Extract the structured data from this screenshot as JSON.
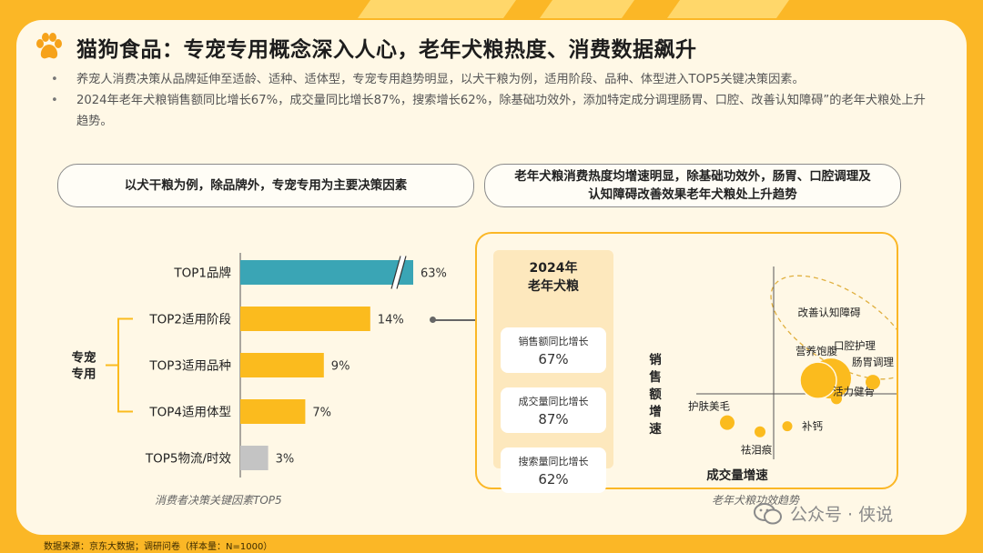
{
  "page": {
    "title": "猫狗食品：专宠专用概念深入人心，老年犬粮热度、消费数据飙升",
    "bullets": [
      "养宠人消费决策从品牌延伸至适龄、适种、适体型，专宠专用趋势明显，以犬干粮为例，适用阶段、品种、体型进入TOP5关键决策因素。",
      "2024年老年犬粮销售额同比增长67%，成交量同比增长87%，搜索增长62%，除基础功效外，添加特定成分调理肠胃、口腔、改善认知障碍”的老年犬粮处上升趋势。"
    ],
    "pill_left": "以犬干粮为例，除品牌外，专宠专用为主要决策因素",
    "pill_right_line1": "老年犬粮消费热度均增速明显，除基础功效外，肠胃、口腔调理及",
    "pill_right_line2": "认知障碍改善效果老年犬粮处上升趋势",
    "source": "数据来源：京东大数据；调研问卷（样本量：N=1000）",
    "watermark": "公众号 · 侠说"
  },
  "stats": {
    "title_line1": "2024年",
    "title_line2": "老年犬粮",
    "items": [
      {
        "label": "销售额同比增长",
        "value": "67%"
      },
      {
        "label": "成交量同比增长",
        "value": "87%"
      },
      {
        "label": "搜索量同比增长",
        "value": "62%"
      }
    ]
  },
  "chart_data": [
    {
      "type": "bar",
      "orientation": "horizontal",
      "caption": "消费者决策关键因素TOP5",
      "categories": [
        "TOP1品牌",
        "TOP2适用阶段",
        "TOP3适用品种",
        "TOP4适用体型",
        "TOP5物流/时效"
      ],
      "values": [
        63,
        14,
        9,
        7,
        3
      ],
      "value_labels": [
        "63%",
        "14%",
        "9%",
        "7%",
        "3%"
      ],
      "colors": [
        "#3aa5b5",
        "#fbbb1e",
        "#fbbb1e",
        "#fbbb1e",
        "#c4c4c4"
      ],
      "axis_break": true,
      "bracket_label": [
        "专宠",
        "专用"
      ],
      "bracket_covers": [
        "TOP2适用阶段",
        "TOP3适用品种",
        "TOP4适用体型"
      ]
    },
    {
      "type": "scatter",
      "caption": "老年犬粮功效趋势",
      "xlabel": "成交量增速",
      "ylabel": "销售额增速",
      "points": [
        {
          "label": "营养饱腹",
          "x": 0.62,
          "y": 0.43,
          "size": 3
        },
        {
          "label": "护肤美毛",
          "x": 0.12,
          "y": 0.2,
          "size": 1
        },
        {
          "label": "祛泪痕",
          "x": 0.3,
          "y": 0.15,
          "size": 0.6
        },
        {
          "label": "补钙",
          "x": 0.45,
          "y": 0.18,
          "size": 0.5
        },
        {
          "label": "活力健骨",
          "x": 0.72,
          "y": 0.33,
          "size": 0.6
        },
        {
          "label": "肠胃调理",
          "x": 0.92,
          "y": 0.42,
          "size": 1
        },
        {
          "label": "口腔护理",
          "x": 0.82,
          "y": 0.62,
          "size": 0
        },
        {
          "label": "改善认知障碍",
          "x": 0.68,
          "y": 0.8,
          "size": 0
        }
      ],
      "highlight_group": [
        "改善认知障碍",
        "口腔护理",
        "肠胃调理"
      ]
    }
  ],
  "colors": {
    "background": "#fbb726",
    "card": "#fff8e6",
    "accent": "#fbbb1e",
    "teal": "#3aa5b5",
    "grey": "#c4c4c4"
  }
}
